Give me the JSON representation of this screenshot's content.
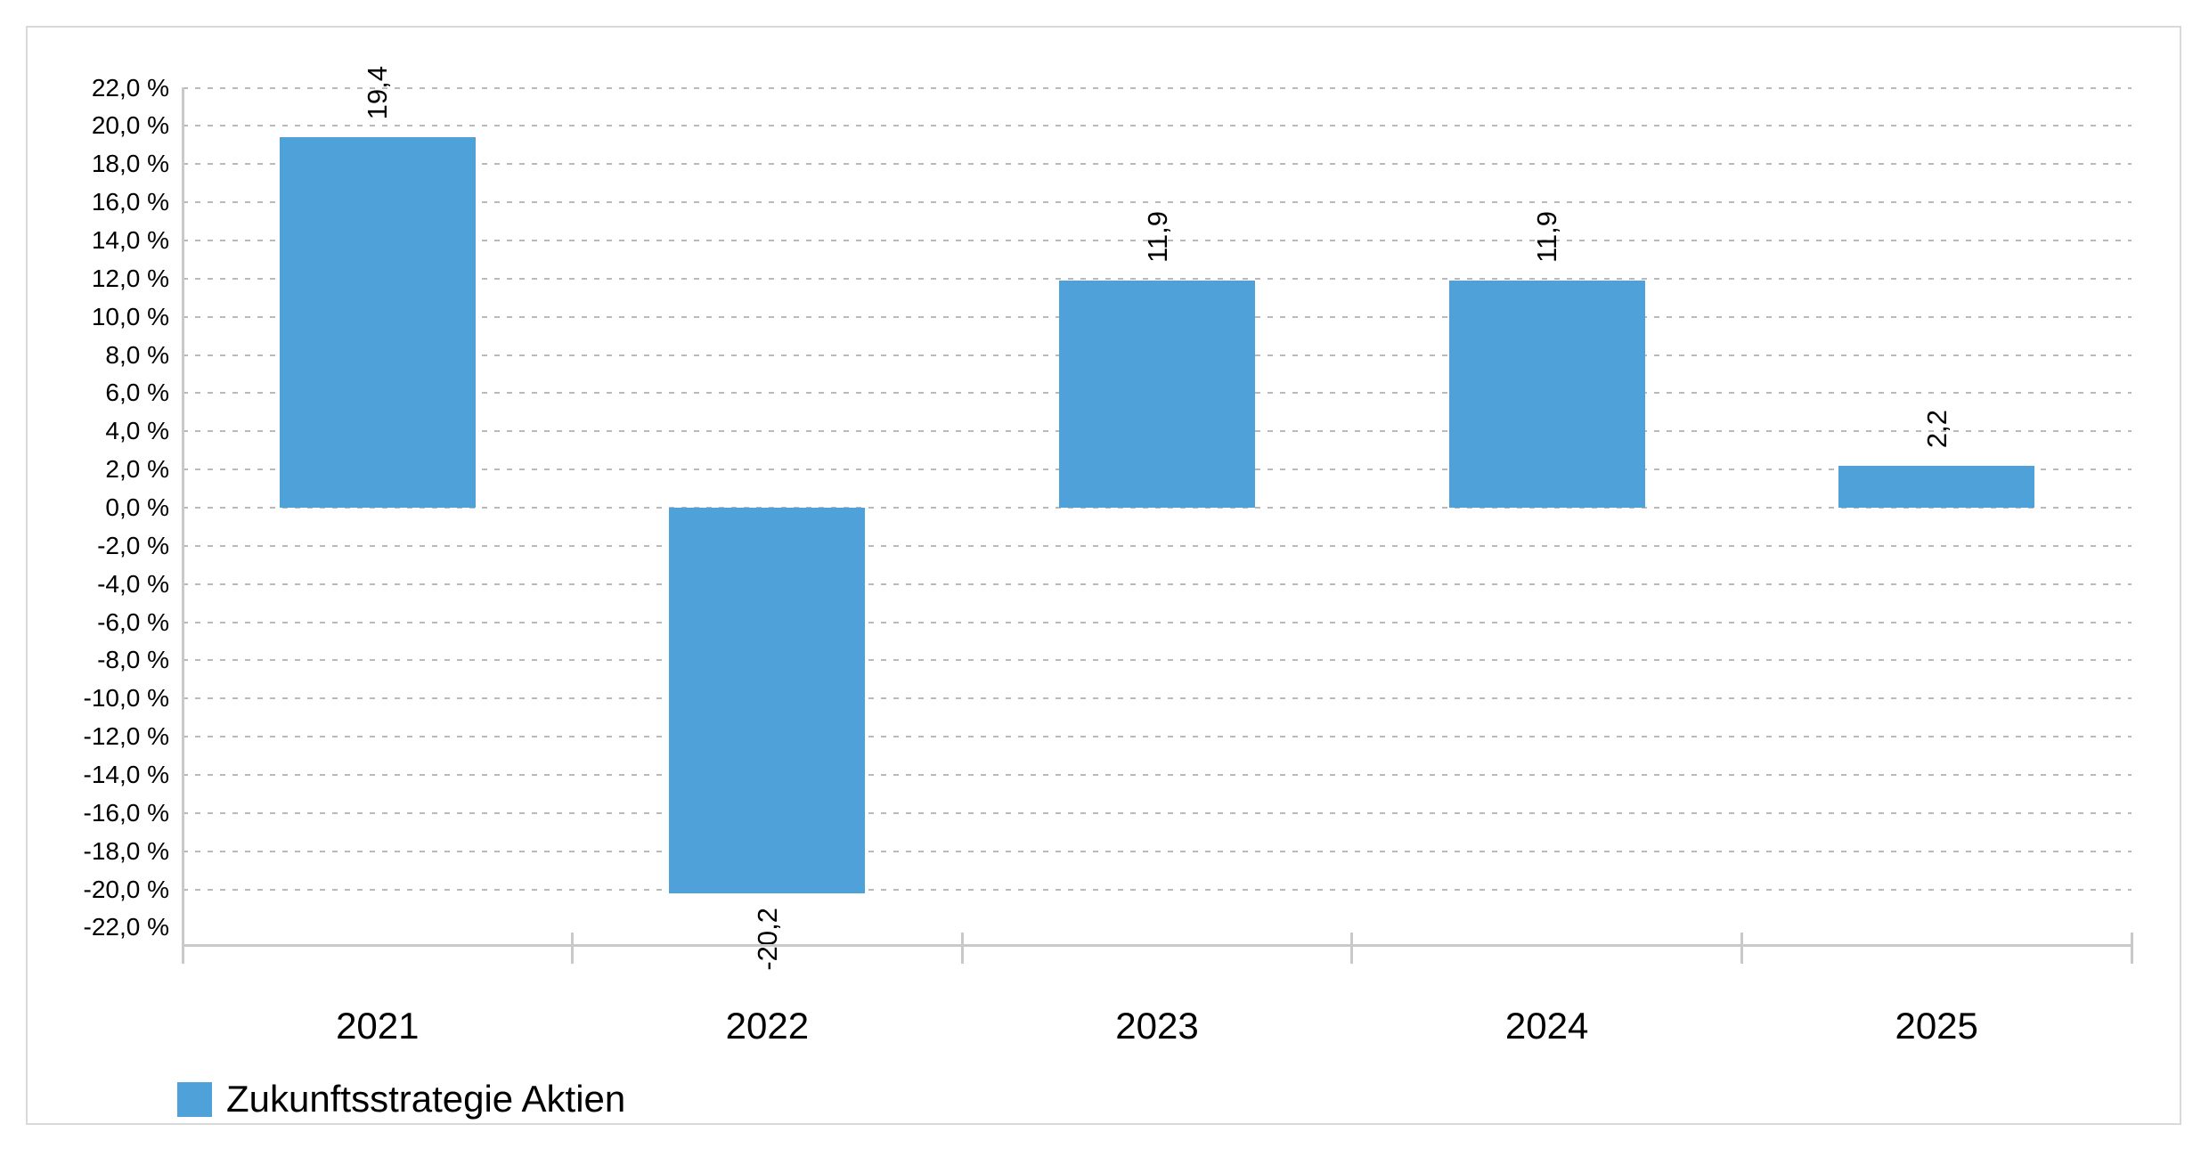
{
  "chart_data": {
    "type": "bar",
    "title": "",
    "categories": [
      "2021",
      "2022",
      "2023",
      "2024",
      "2025"
    ],
    "series": [
      {
        "name": "Zukunftsstrategie Aktien",
        "values": [
          19.4,
          -20.2,
          11.9,
          11.9,
          2.2
        ],
        "value_labels": [
          "19,4",
          "-20,2",
          "11,9",
          "11,9",
          "2,2"
        ],
        "color": "#4fa2d9"
      }
    ],
    "xlabel": "",
    "ylabel": "",
    "ylim": [
      -22,
      22
    ],
    "y_tick_step": 2,
    "y_ticks": [
      {
        "value": 22,
        "label": "22,0 %"
      },
      {
        "value": 20,
        "label": "20,0 %"
      },
      {
        "value": 18,
        "label": "18,0 %"
      },
      {
        "value": 16,
        "label": "16,0 %"
      },
      {
        "value": 14,
        "label": "14,0 %"
      },
      {
        "value": 12,
        "label": "12,0 %"
      },
      {
        "value": 10,
        "label": "10,0 %"
      },
      {
        "value": 8,
        "label": "8,0 %"
      },
      {
        "value": 6,
        "label": "6,0 %"
      },
      {
        "value": 4,
        "label": "4,0 %"
      },
      {
        "value": 2,
        "label": "2,0 %"
      },
      {
        "value": 0,
        "label": "0,0 %"
      },
      {
        "value": -2,
        "label": "-2,0 %"
      },
      {
        "value": -4,
        "label": "-4,0 %"
      },
      {
        "value": -6,
        "label": "-6,0 %"
      },
      {
        "value": -8,
        "label": "-8,0 %"
      },
      {
        "value": -10,
        "label": "-10,0 %"
      },
      {
        "value": -12,
        "label": "-12,0 %"
      },
      {
        "value": -14,
        "label": "-14,0 %"
      },
      {
        "value": -16,
        "label": "-16,0 %"
      },
      {
        "value": -18,
        "label": "-18,0 %"
      },
      {
        "value": -20,
        "label": "-20,0 %"
      },
      {
        "value": -22,
        "label": "-22,0 %"
      }
    ],
    "grid": "dashed-horizontal",
    "gridline_color": "#b9b9b9",
    "axis_color": "#c9c9c9",
    "panel_border_color": "#d9d9d9",
    "legend_position": "bottom-left",
    "legend": [
      {
        "label": "Zukunftsstrategie Aktien",
        "color": "#4fa2d9"
      }
    ]
  }
}
